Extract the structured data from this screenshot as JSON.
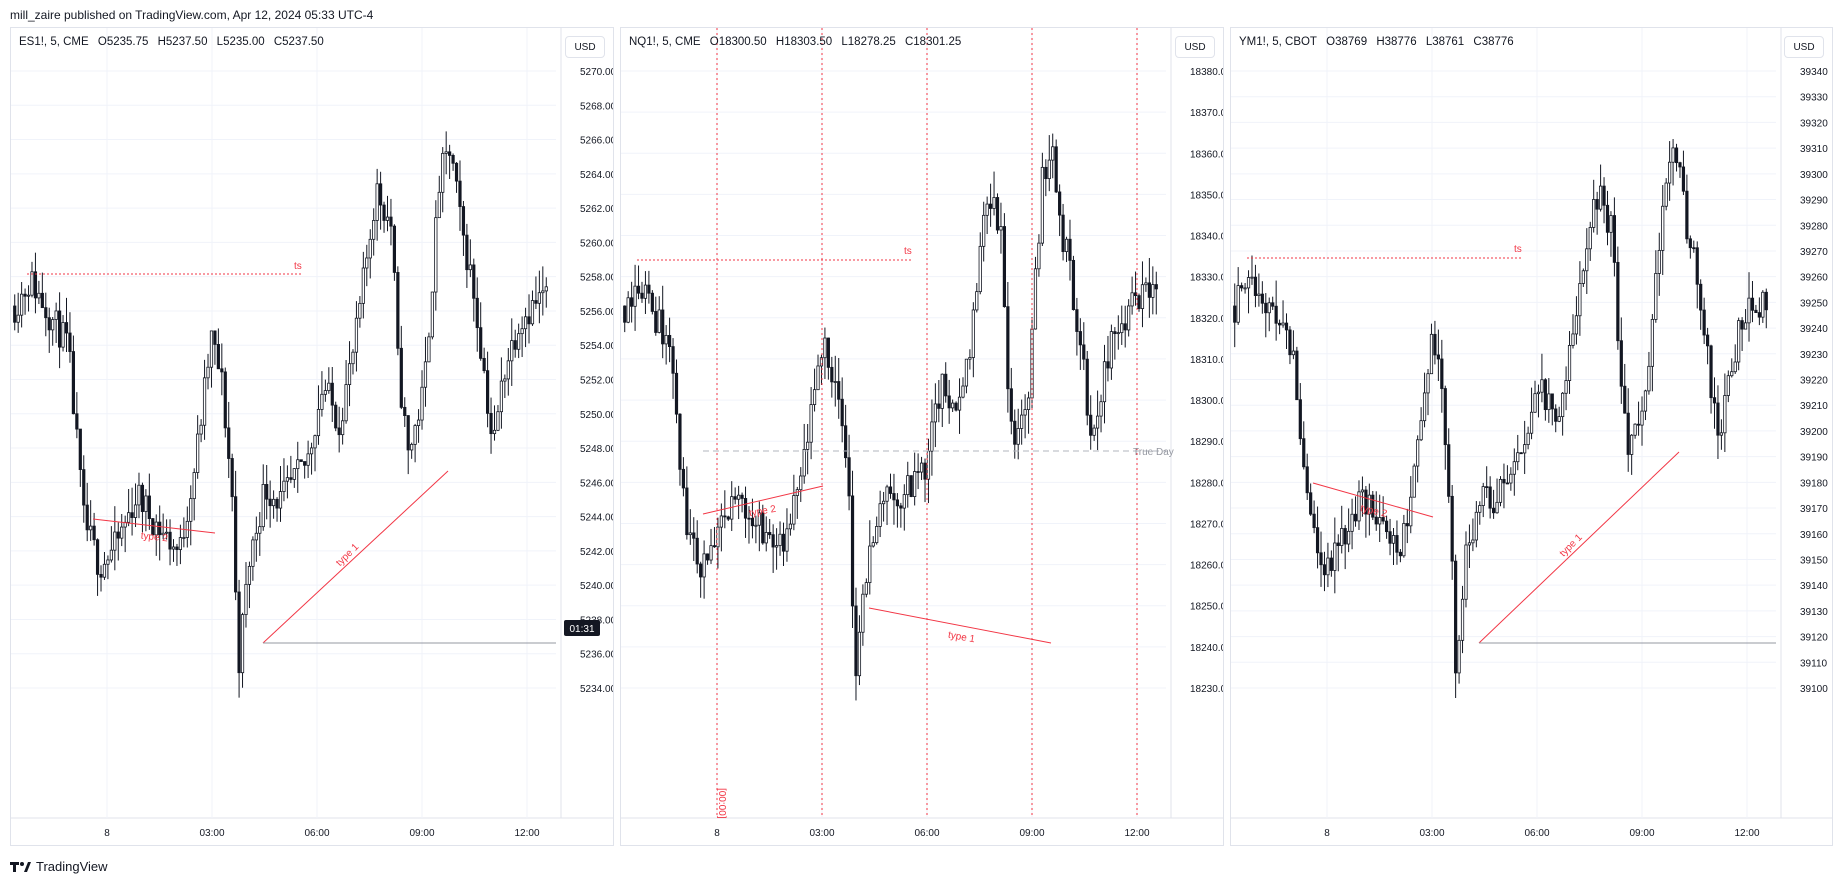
{
  "header": {
    "text": "mill_zaire published on TradingView.com, Apr 12, 2024 05:33 UTC-4"
  },
  "footer": {
    "brand": "TradingView",
    "logo_icon": "tradingview-logo-icon"
  },
  "colors": {
    "candle": "#131722",
    "annotation": "#f23645",
    "grid": "#f0f3fa",
    "axis_text": "#131722",
    "dashed": "#b2b5be"
  },
  "panels": [
    {
      "symbol": "ES1!, 5, CME",
      "open": "O5235.75",
      "high": "H5237.50",
      "low": "L5235.00",
      "close": "C5237.50",
      "currency": "USD",
      "y_ticks": [
        "5270.00",
        "5268.00",
        "5266.00",
        "5264.00",
        "5262.00",
        "5260.00",
        "5258.00",
        "5256.00",
        "5254.00",
        "5252.00",
        "5250.00",
        "5248.00",
        "5246.00",
        "5244.00",
        "5242.00",
        "5240.00",
        "5238.00",
        "5236.00",
        "5234.00"
      ],
      "y_range": [
        5233.2,
        5271.0
      ],
      "x_ticks": [
        "8",
        "03:00",
        "06:00",
        "09:00",
        "12:00"
      ],
      "time_badge": "01:31",
      "annotations": [
        "ts",
        "type 2",
        "type 1"
      ],
      "vertical_label": ""
    },
    {
      "symbol": "NQ1!, 5, CME",
      "open": "O18300.50",
      "high": "H18303.50",
      "low": "L18278.25",
      "close": "C18301.25",
      "currency": "USD",
      "y_ticks": [
        "18380.00",
        "18370.00",
        "18360.00",
        "18350.00",
        "18340.00",
        "18330.00",
        "18320.00",
        "18310.00",
        "18300.00",
        "18290.00",
        "18280.00",
        "18270.00",
        "18260.00",
        "18250.00",
        "18240.00",
        "18230.00"
      ],
      "y_range": [
        18226.0,
        18383.0
      ],
      "x_ticks": [
        "8",
        "03:00",
        "06:00",
        "09:00",
        "12:00"
      ],
      "time_badge": "",
      "annotations": [
        "ts",
        "type 2",
        "type 1"
      ],
      "true_day_label": "True Day",
      "vertical_label": "[00:00]"
    },
    {
      "symbol": "YM1!, 5, CBOT",
      "open": "O38769",
      "high": "H38776",
      "low": "L38761",
      "close": "C38776",
      "currency": "USD",
      "y_ticks": [
        "39340",
        "39330",
        "39320",
        "39310",
        "39300",
        "39290",
        "39280",
        "39270",
        "39260",
        "39250",
        "39240",
        "39230",
        "39220",
        "39210",
        "39200",
        "39190",
        "39180",
        "39170",
        "39160",
        "39150",
        "39140",
        "39130",
        "39120",
        "39110",
        "39100"
      ],
      "y_range": [
        39095.0,
        39345.0
      ],
      "x_ticks": [
        "8",
        "03:00",
        "06:00",
        "09:00",
        "12:00"
      ],
      "time_badge": "",
      "annotations": [
        "ts",
        "type 2",
        "type 1"
      ],
      "vertical_label": ""
    }
  ]
}
